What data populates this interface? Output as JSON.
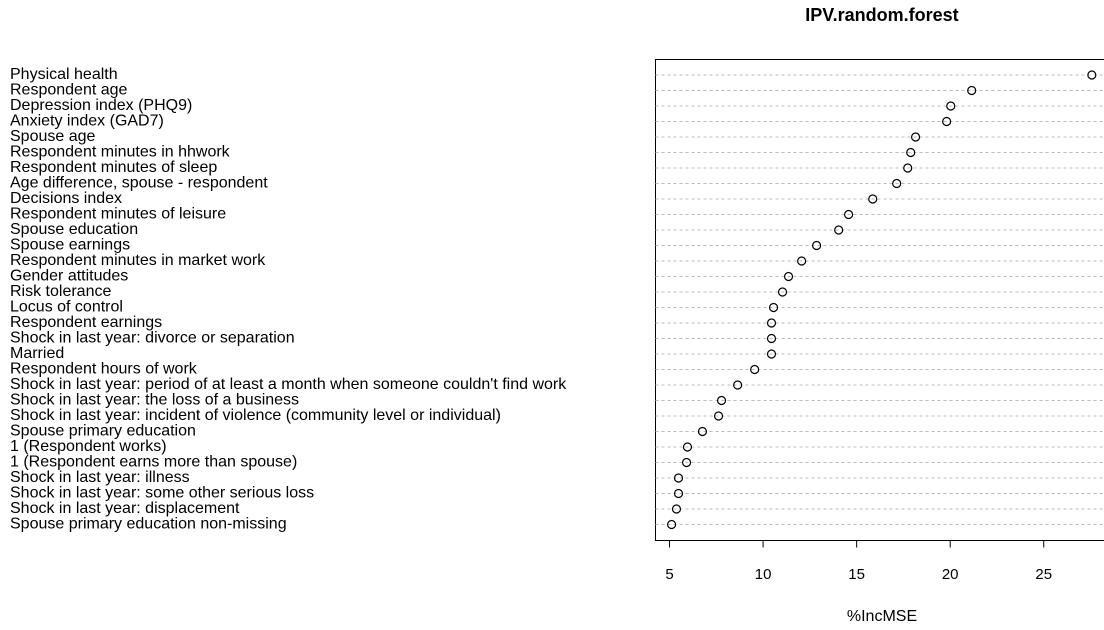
{
  "chart_data": {
    "type": "dotchart",
    "title": "IPV.random.forest",
    "x_label": "%IncMSE",
    "categories": [
      "Physical health",
      "Respondent age",
      "Depression index (PHQ9)",
      "Anxiety index (GAD7)",
      "Spouse age",
      "Respondent minutes in hhwork",
      "Respondent minutes of sleep",
      "Age difference, spouse - respondent",
      "Decisions index",
      "Respondent minutes of leisure",
      "Spouse education",
      "Spouse earnings",
      "Respondent minutes in market work",
      "Gender attitudes",
      "Risk tolerance",
      "Locus of control",
      "Respondent earnings",
      "Shock in last year: divorce or separation",
      "Married",
      "Respondent hours of work",
      "Shock in last year: period of at least a month when someone couldn't find work",
      "Shock in last year: the loss of a business",
      "Shock in last year: incident of violence (community level or individual)",
      "Spouse primary education",
      "1 (Respondent works)",
      "1 (Respondent earns more than spouse)",
      "Shock in last year: illness",
      "Shock in last year: some other serious loss",
      "Shock in last year: displacement",
      "Spouse primary education non-missing"
    ],
    "values": [
      27.57,
      21.15,
      20.03,
      19.81,
      18.15,
      17.89,
      17.73,
      17.14,
      15.86,
      14.57,
      14.04,
      12.86,
      12.06,
      11.36,
      11.04,
      10.56,
      10.45,
      10.45,
      10.45,
      9.55,
      8.64,
      7.78,
      7.62,
      6.76,
      5.96,
      5.91,
      5.48,
      5.48,
      5.37,
      5.11
    ],
    "xlim": [
      4.25,
      28.3
    ],
    "xticks": [
      5,
      10,
      15,
      20,
      25
    ]
  }
}
